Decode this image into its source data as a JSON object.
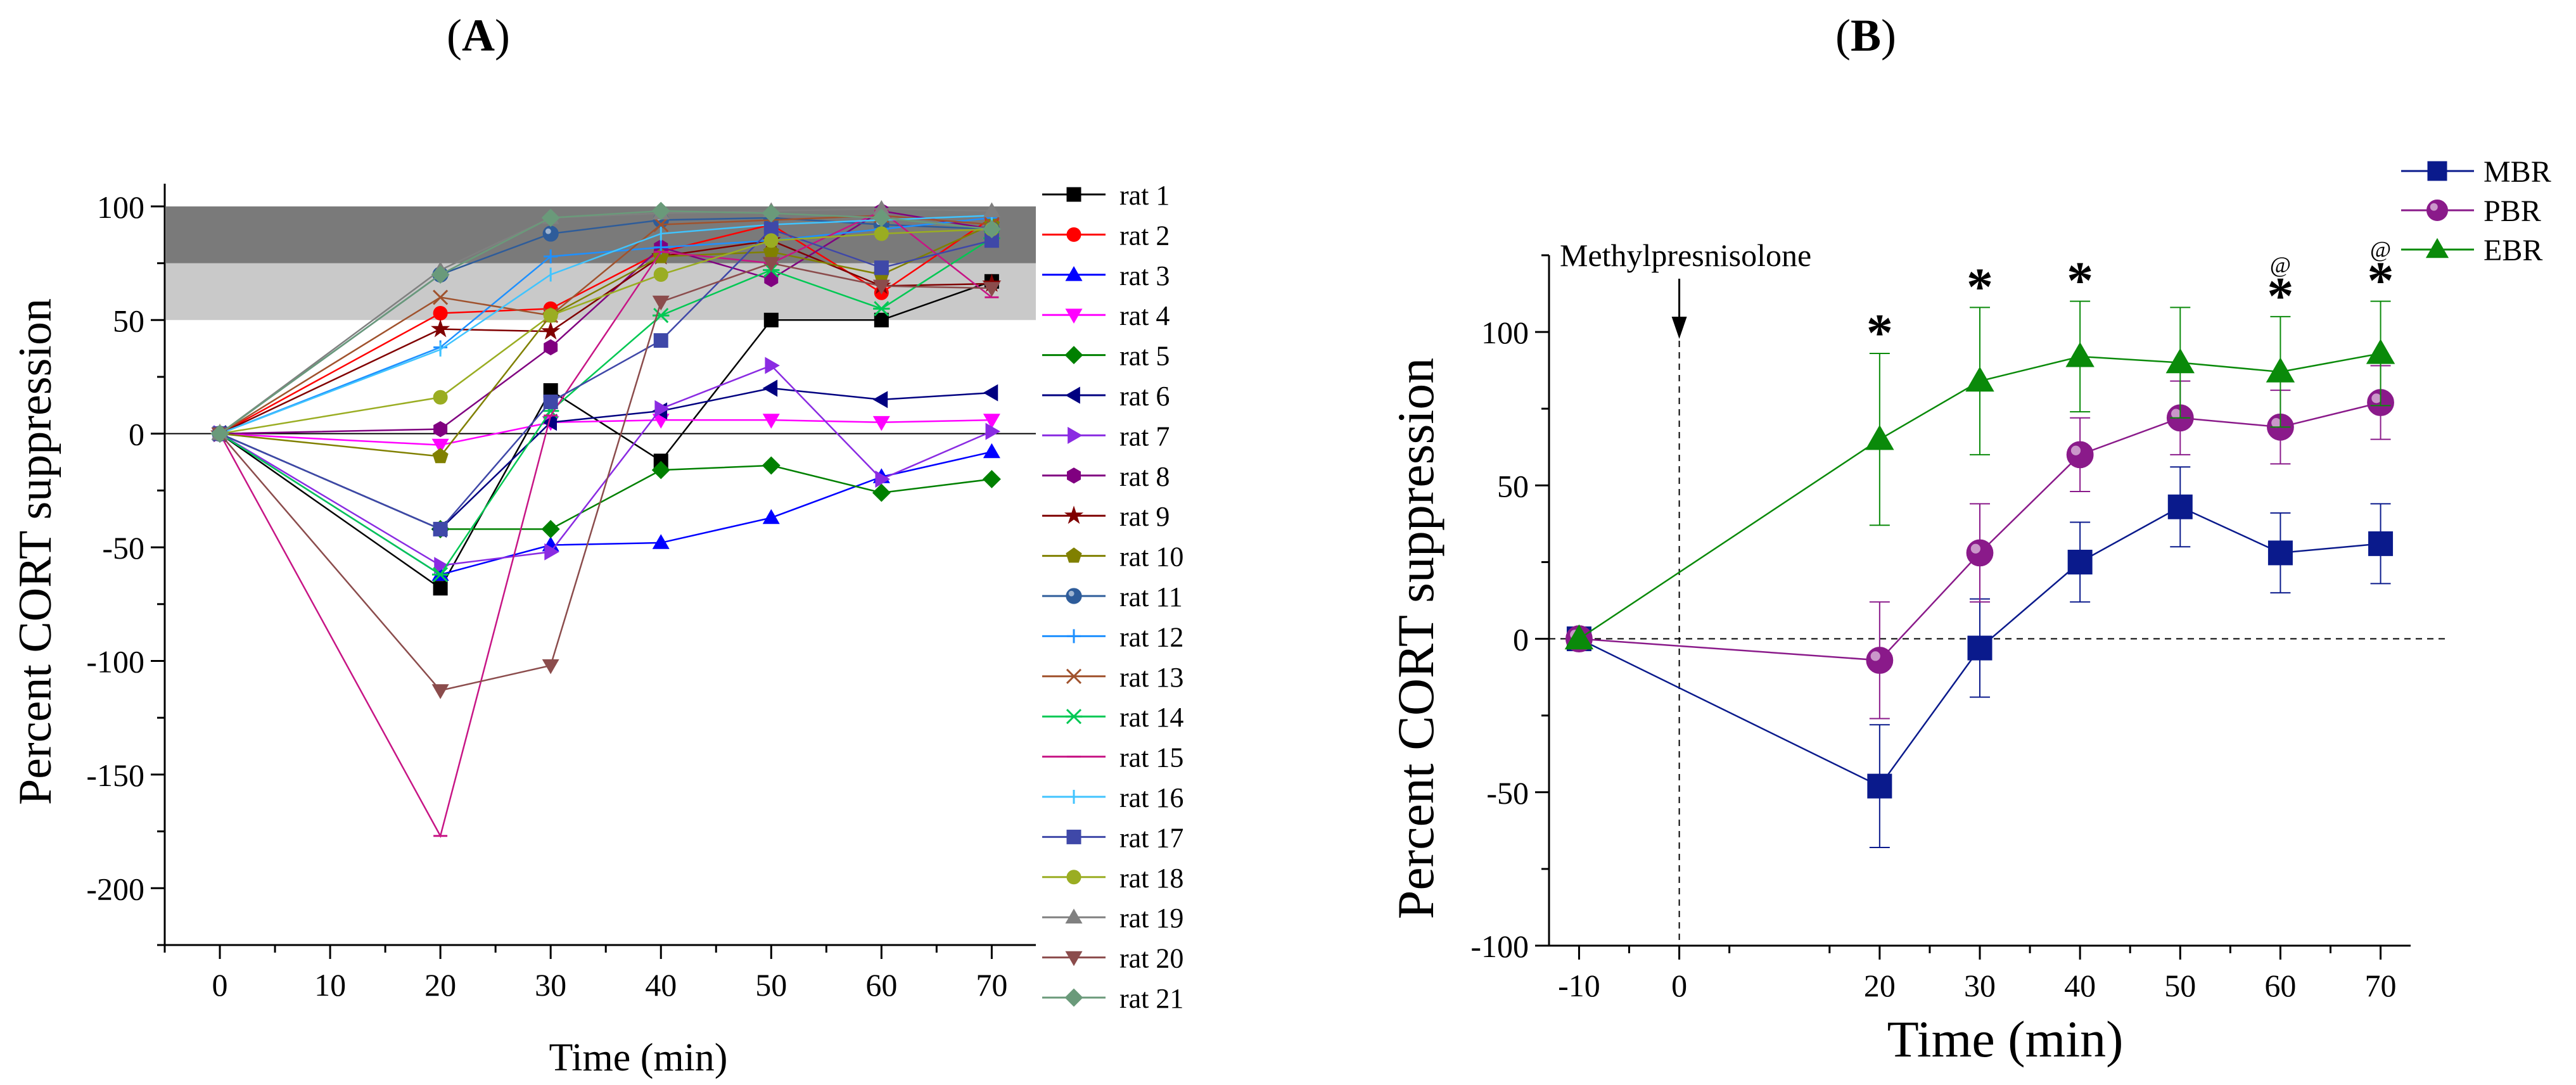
{
  "panel_a": {
    "title_open": "(",
    "title_letter": "A",
    "title_close": ")",
    "bands": {
      "dark_range": [
        75,
        100
      ],
      "light_range": [
        50,
        75
      ],
      "dark_color": "#7a7a7a",
      "light_color": "#c9c9c9"
    }
  },
  "panel_b": {
    "title_open": "(",
    "title_letter": "B",
    "title_close": ")",
    "annotation": "Methylpresnisolone",
    "significance_star": "*",
    "significance_at": "@"
  },
  "chart_data": [
    {
      "type": "line",
      "title": "(A)",
      "xlabel": "Time (min)",
      "ylabel": "Percent CORT suppression",
      "xlim": [
        -5,
        74
      ],
      "ylim": [
        -225,
        110
      ],
      "x": [
        0,
        20,
        30,
        40,
        50,
        60,
        70
      ],
      "xticks": [
        0,
        10,
        20,
        30,
        40,
        50,
        60,
        70
      ],
      "yticks": [
        -200,
        -150,
        -100,
        -50,
        0,
        50,
        100
      ],
      "legend_position": "right-outside",
      "series": [
        {
          "name": "rat 1",
          "color": "#000000",
          "marker": "square",
          "values": [
            0,
            -68,
            19,
            -12,
            50,
            50,
            67
          ]
        },
        {
          "name": "rat 2",
          "color": "#ff0000",
          "marker": "circle",
          "values": [
            0,
            53,
            55,
            80,
            92,
            62,
            95
          ]
        },
        {
          "name": "rat 3",
          "color": "#0000ff",
          "marker": "triangle-up",
          "values": [
            0,
            -62,
            -49,
            -48,
            -37,
            -19,
            -8
          ]
        },
        {
          "name": "rat 4",
          "color": "#ff00ff",
          "marker": "triangle-down",
          "values": [
            0,
            -5,
            5,
            6,
            6,
            5,
            6
          ]
        },
        {
          "name": "rat 5",
          "color": "#008000",
          "marker": "diamond",
          "values": [
            0,
            -42,
            -42,
            -16,
            -14,
            -26,
            -20
          ]
        },
        {
          "name": "rat 6",
          "color": "#000080",
          "marker": "triangle-left",
          "values": [
            0,
            -42,
            5,
            10,
            20,
            15,
            18
          ]
        },
        {
          "name": "rat 7",
          "color": "#8a2be2",
          "marker": "triangle-right",
          "values": [
            0,
            -58,
            -52,
            11,
            30,
            -20,
            1
          ]
        },
        {
          "name": "rat 8",
          "color": "#800080",
          "marker": "hexagon",
          "values": [
            0,
            2,
            38,
            82,
            68,
            98,
            90
          ]
        },
        {
          "name": "rat 9",
          "color": "#800000",
          "marker": "star",
          "values": [
            0,
            46,
            45,
            78,
            85,
            65,
            66
          ]
        },
        {
          "name": "rat 10",
          "color": "#808000",
          "marker": "pentagon",
          "values": [
            0,
            -10,
            52,
            78,
            80,
            70,
            92
          ]
        },
        {
          "name": "rat 11",
          "color": "#2e5c9a",
          "marker": "sphere",
          "values": [
            0,
            70,
            88,
            94,
            95,
            92,
            90
          ]
        },
        {
          "name": "rat 12",
          "color": "#1e90ff",
          "marker": "plus",
          "values": [
            0,
            38,
            78,
            82,
            85,
            90,
            95
          ]
        },
        {
          "name": "rat 13",
          "color": "#a0522d",
          "marker": "x",
          "values": [
            0,
            60,
            52,
            92,
            94,
            96,
            92
          ]
        },
        {
          "name": "rat 14",
          "color": "#00c853",
          "marker": "asterisk",
          "values": [
            0,
            -62,
            10,
            52,
            72,
            55,
            86
          ]
        },
        {
          "name": "rat 15",
          "color": "#c71585",
          "marker": "dash",
          "values": [
            0,
            -177,
            8,
            80,
            75,
            98,
            60
          ]
        },
        {
          "name": "rat 16",
          "color": "#40c4ff",
          "marker": "vbar",
          "values": [
            0,
            37,
            70,
            88,
            92,
            94,
            96
          ]
        },
        {
          "name": "rat 17",
          "color": "#3f48a8",
          "marker": "square",
          "values": [
            0,
            -42,
            14,
            41,
            90,
            73,
            85
          ]
        },
        {
          "name": "rat 18",
          "color": "#9aad22",
          "marker": "circle",
          "values": [
            0,
            16,
            52,
            70,
            85,
            88,
            90
          ]
        },
        {
          "name": "rat 19",
          "color": "#808080",
          "marker": "triangle-up",
          "values": [
            0,
            72,
            95,
            97,
            98,
            99,
            98
          ]
        },
        {
          "name": "rat 20",
          "color": "#8b4c4c",
          "marker": "triangle-down",
          "values": [
            0,
            -113,
            -102,
            58,
            75,
            65,
            64
          ]
        },
        {
          "name": "rat 21",
          "color": "#6a9a7a",
          "marker": "diamond",
          "values": [
            0,
            70,
            95,
            98,
            97,
            95,
            90
          ]
        }
      ]
    },
    {
      "type": "line",
      "title": "(B)",
      "xlabel": "Time (min)",
      "ylabel": "Percent CORT suppression",
      "xlim": [
        -13,
        73
      ],
      "ylim": [
        -100,
        125
      ],
      "xticks": [
        -10,
        0,
        20,
        30,
        40,
        50,
        60,
        70
      ],
      "yticks": [
        -100,
        -50,
        0,
        50,
        100
      ],
      "reference_lines": {
        "y": 0,
        "x": 0
      },
      "legend_position": "top-right-outside",
      "series": [
        {
          "name": "MBR",
          "color": "#0a1a8c",
          "marker": "square",
          "x": [
            -10,
            20,
            30,
            40,
            50,
            60,
            70
          ],
          "values": [
            0,
            -48,
            -3,
            25,
            43,
            28,
            31
          ],
          "error": [
            0,
            20,
            16,
            13,
            13,
            13,
            13
          ]
        },
        {
          "name": "PBR",
          "color": "#8a1a8a",
          "marker": "sphere",
          "x": [
            -10,
            20,
            30,
            40,
            50,
            60,
            70
          ],
          "values": [
            0,
            -7,
            28,
            60,
            72,
            69,
            77
          ],
          "error": [
            0,
            19,
            16,
            12,
            12,
            12,
            12
          ]
        },
        {
          "name": "EBR",
          "color": "#0a8a0a",
          "marker": "triangle-up",
          "x": [
            -10,
            20,
            30,
            40,
            50,
            60,
            70
          ],
          "values": [
            0,
            65,
            84,
            92,
            90,
            87,
            93
          ],
          "error": [
            0,
            28,
            24,
            18,
            18,
            18,
            17
          ]
        }
      ],
      "significance": [
        {
          "x": 20,
          "symbols": "*"
        },
        {
          "x": 30,
          "symbols": "*"
        },
        {
          "x": 40,
          "symbols": "*"
        },
        {
          "x": 60,
          "symbols": "*@"
        },
        {
          "x": 70,
          "symbols": "*@"
        }
      ]
    }
  ]
}
